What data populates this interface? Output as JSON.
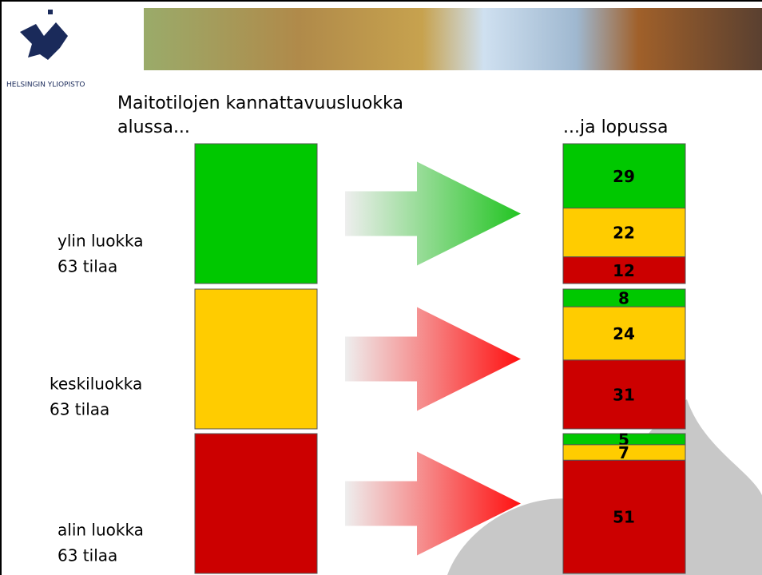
{
  "university": "HELSINGIN YLIOPISTO",
  "header": {
    "title": [
      "Maitotilojen kannattavuusluokka",
      "alussa..."
    ],
    "end_label": "...ja lopussa"
  },
  "groups": [
    {
      "label": [
        "ylin luokka",
        "63 tilaa"
      ],
      "color": "#00c800",
      "arrow_color": "#22c422",
      "segments": [
        {
          "value": 29,
          "color": "#00c800"
        },
        {
          "value": 22,
          "color": "#ffcc00"
        },
        {
          "value": 12,
          "color": "#cc0000"
        }
      ]
    },
    {
      "label": [
        "keskiluokka",
        "63 tilaa"
      ],
      "color": "#ffcc00",
      "arrow_color": "#ff1010",
      "segments": [
        {
          "value": 8,
          "color": "#00c800"
        },
        {
          "value": 24,
          "color": "#ffcc00"
        },
        {
          "value": 31,
          "color": "#cc0000"
        }
      ]
    },
    {
      "label": [
        "alin luokka",
        "63 tilaa"
      ],
      "color": "#cc0000",
      "arrow_color": "#ff1010",
      "segments": [
        {
          "value": 5,
          "color": "#00c800"
        },
        {
          "value": 7,
          "color": "#ffcc00"
        },
        {
          "value": 51,
          "color": "#cc0000"
        }
      ]
    }
  ]
}
